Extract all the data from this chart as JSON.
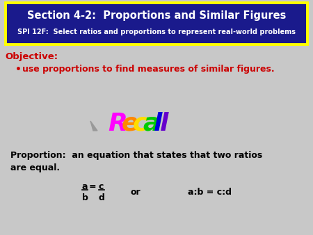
{
  "bg_color": "#c8c8c8",
  "header_bg": "#1a1a8c",
  "header_border": "#ffff00",
  "header_title": "Section 4-2:  Proportions and Similar Figures",
  "header_subtitle": "SPI 12F:  Select ratios and proportions to represent real-world problems",
  "header_title_color": "#ffffff",
  "header_subtitle_color": "#ffffff",
  "objective_label": "Objective:",
  "objective_color": "#cc0000",
  "bullet_text": "use proportions to find measures of similar figures.",
  "bullet_color": "#cc0000",
  "recall_letters": [
    "R",
    "e",
    "c",
    "a",
    "l",
    "l"
  ],
  "recall_colors": [
    "#ff00ff",
    "#ff8800",
    "#ffdd00",
    "#00cc00",
    "#0000dd",
    "#6600cc"
  ],
  "proportion_text_1": "Proportion:  an equation that states that two ratios",
  "proportion_text_2": "are equal.",
  "or_text": "or",
  "ratio_text": "a:b = c:d",
  "text_color": "#000000"
}
